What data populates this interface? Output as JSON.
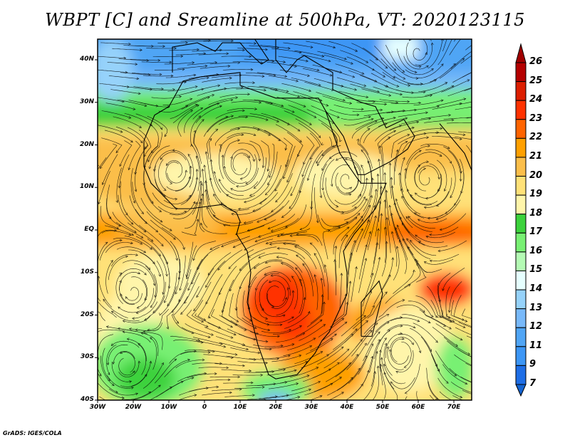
{
  "title": "WBPT [C] and Sreamline at 500hPa, VT: 2020123115",
  "footer": "GrADS: IGES/COLA",
  "map": {
    "lon_range": [
      -30,
      75
    ],
    "lat_range": [
      -40,
      45
    ],
    "lat_labels": [
      "40N",
      "30N",
      "20N",
      "10N",
      "EQ",
      "10S",
      "20S",
      "30S",
      "40S"
    ],
    "lat_values": [
      40,
      30,
      20,
      10,
      0,
      -10,
      -20,
      -30,
      -40
    ],
    "lon_labels": [
      "30W",
      "20W",
      "10W",
      "0",
      "10E",
      "20E",
      "30E",
      "40E",
      "50E",
      "60E",
      "70E"
    ],
    "lon_values": [
      -30,
      -20,
      -10,
      0,
      10,
      20,
      30,
      40,
      50,
      60,
      70
    ]
  },
  "colorbar": {
    "labels": [
      "26",
      "25",
      "24",
      "23",
      "22",
      "21",
      "20",
      "19",
      "18",
      "17",
      "16",
      "15",
      "14",
      "13",
      "12",
      "11",
      "9",
      "7"
    ],
    "colors": [
      "#b40000",
      "#dc1e00",
      "#ff3200",
      "#ff6400",
      "#ffa000",
      "#fbbe4a",
      "#ffe178",
      "#fff5aa",
      "#3cd23c",
      "#78f073",
      "#b4fab4",
      "#e6ffff",
      "#96d2fa",
      "#78b9fa",
      "#50a5f5",
      "#3c96f5",
      "#1e6ee6"
    ],
    "over_color": "#a00000",
    "under_color": "#1464d2"
  }
}
